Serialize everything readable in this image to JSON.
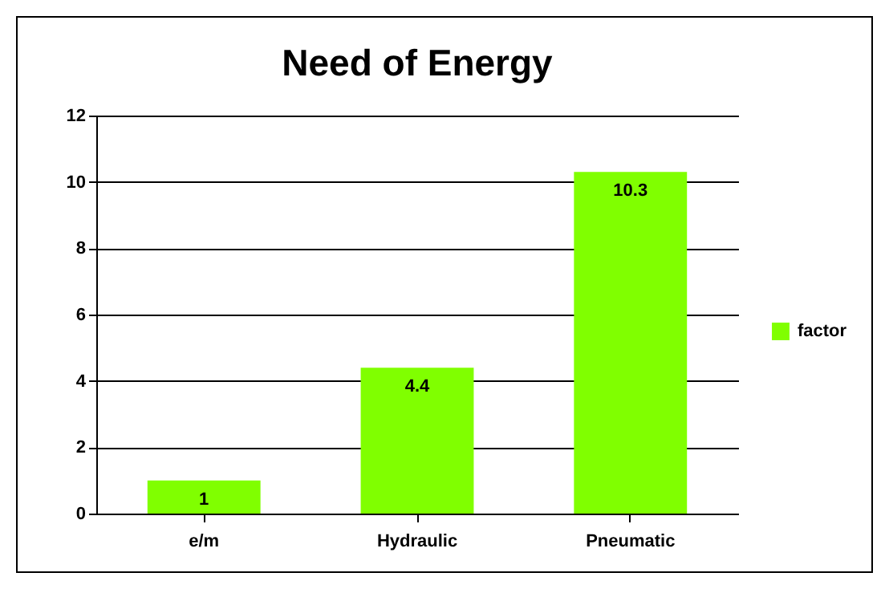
{
  "chart_data": {
    "type": "bar",
    "title": "Need of Energy",
    "categories": [
      "e/m",
      "Hydraulic",
      "Pneumatic"
    ],
    "series": [
      {
        "name": "factor",
        "color": "#80ff00",
        "values": [
          1,
          4.4,
          10.3
        ]
      }
    ],
    "ylim": [
      0,
      12
    ],
    "yticks": [
      0,
      2,
      4,
      6,
      8,
      10,
      12
    ],
    "grid": "y",
    "legend": "right",
    "data_labels": true
  }
}
